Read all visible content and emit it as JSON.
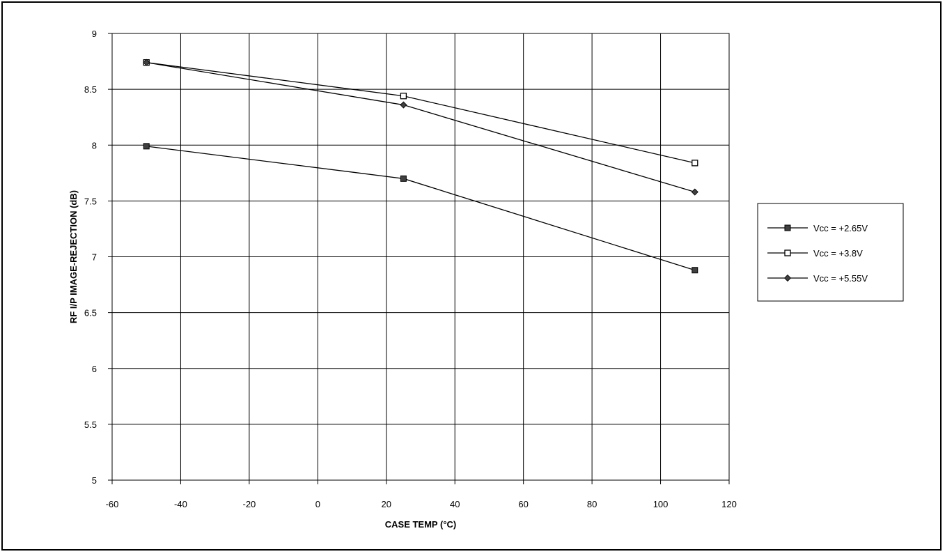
{
  "chart_data": {
    "type": "line",
    "title": "",
    "xlabel": "CASE TEMP (°C)",
    "ylabel": "RF I/P IMAGE-REJECTION (dB)",
    "xlim": [
      -60,
      120
    ],
    "ylim": [
      5,
      9
    ],
    "xticks": [
      -60,
      -40,
      -20,
      0,
      20,
      40,
      60,
      80,
      100,
      120
    ],
    "yticks": [
      5,
      5.5,
      6,
      6.5,
      7,
      7.5,
      8,
      8.5,
      9
    ],
    "grid": true,
    "legend_position": "right",
    "x": [
      -50,
      25,
      110
    ],
    "series": [
      {
        "name": "Vcc = +2.65V",
        "marker": "filled-square",
        "values": [
          7.99,
          7.7,
          6.88
        ]
      },
      {
        "name": "Vcc = +3.8V",
        "marker": "open-square",
        "values": [
          8.74,
          8.44,
          7.84
        ]
      },
      {
        "name": "Vcc = +5.55V",
        "marker": "diamond",
        "values": [
          8.74,
          8.36,
          7.58
        ]
      }
    ],
    "colors": {
      "line": "#000000",
      "marker_fill": "#404040"
    }
  }
}
